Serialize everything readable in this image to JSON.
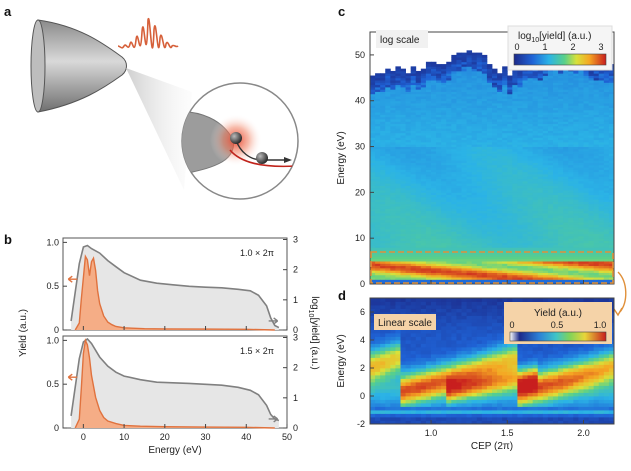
{
  "panel_labels": {
    "a": "a",
    "b": "b",
    "c": "c",
    "d": "d"
  },
  "colors": {
    "orange": "#e0723e",
    "gray_line": "#808080",
    "fill_gray": "#e6e6e6",
    "orange_fill": "#f5ad86"
  },
  "chart_data": [
    {
      "panel": "b-top",
      "type": "area",
      "annotation": "1.0 × 2π",
      "xlabel": "Energy (eV)",
      "ylabel": "Yield (a.u.)",
      "y2label": "log",
      "y2label_sub": "10",
      "y2label_rest": "[yield] (a.u.)",
      "xlim": [
        -5,
        50
      ],
      "ylim": [
        0,
        1.05
      ],
      "y2lim": [
        0,
        3.05
      ],
      "yticks": [
        "0",
        "0.5",
        "1.0"
      ],
      "y2ticks": [
        "0",
        "1",
        "2",
        "3"
      ],
      "series": [
        {
          "name": "yield (linear, orange)",
          "x": [
            -2,
            -1,
            -0.5,
            0,
            0.5,
            1,
            1.5,
            2,
            2.5,
            3,
            3.5,
            4,
            5,
            6,
            7,
            8,
            10,
            12,
            15,
            20,
            30,
            40,
            47
          ],
          "values": [
            0,
            0.08,
            0.35,
            0.6,
            0.84,
            0.8,
            0.62,
            0.78,
            0.82,
            0.68,
            0.45,
            0.3,
            0.16,
            0.09,
            0.06,
            0.04,
            0.025,
            0.02,
            0.015,
            0.012,
            0.01,
            0.008,
            0
          ]
        },
        {
          "name": "log10 yield (gray)",
          "x": [
            -3,
            -1,
            0,
            1,
            2,
            4,
            6,
            8,
            10,
            14,
            18,
            22,
            26,
            30,
            34,
            38,
            41,
            43,
            45,
            46,
            47,
            48
          ],
          "values": [
            0.3,
            2.2,
            2.75,
            2.8,
            2.7,
            2.55,
            2.3,
            2.1,
            1.9,
            1.65,
            1.55,
            1.5,
            1.45,
            1.42,
            1.4,
            1.35,
            1.3,
            1.15,
            0.8,
            0.4,
            0.15,
            0.08
          ]
        }
      ]
    },
    {
      "panel": "b-bottom",
      "type": "area",
      "annotation": "1.5 × 2π",
      "xlabel": "Energy (eV)",
      "xticks": [
        "0",
        "10",
        "20",
        "30",
        "40",
        "50"
      ],
      "xlim": [
        -5,
        50
      ],
      "ylim": [
        0,
        1.05
      ],
      "y2lim": [
        0,
        3.05
      ],
      "yticks": [
        "0",
        "0.5",
        "1.0"
      ],
      "y2ticks": [
        "0",
        "1",
        "2",
        "3"
      ],
      "series": [
        {
          "name": "yield (linear, orange)",
          "x": [
            -2,
            -1,
            -0.5,
            0,
            0.5,
            1,
            1.5,
            2,
            3,
            4,
            5,
            6,
            8,
            10,
            14,
            20,
            30,
            40,
            47
          ],
          "values": [
            0,
            0.1,
            0.45,
            0.85,
            1.0,
            0.95,
            0.8,
            0.6,
            0.35,
            0.2,
            0.12,
            0.08,
            0.05,
            0.03,
            0.02,
            0.015,
            0.01,
            0.008,
            0
          ]
        },
        {
          "name": "log10 yield (gray)",
          "x": [
            -3,
            -1,
            0,
            1,
            2,
            4,
            6,
            8,
            10,
            14,
            18,
            22,
            26,
            30,
            34,
            38,
            41,
            43,
            45,
            46,
            47,
            48
          ],
          "values": [
            0.4,
            2.3,
            2.85,
            2.95,
            2.8,
            2.35,
            2.05,
            1.85,
            1.72,
            1.6,
            1.52,
            1.5,
            1.48,
            1.45,
            1.42,
            1.35,
            1.25,
            1.1,
            0.75,
            0.45,
            0.3,
            0.25
          ]
        }
      ]
    },
    {
      "panel": "c",
      "type": "heatmap",
      "title_badge": "log scale",
      "colorbar_label_pre": "log",
      "colorbar_label_sub": "10",
      "colorbar_label_post": "[yield] (a.u.)",
      "colorbar_ticks": [
        "0",
        "1",
        "2",
        "3"
      ],
      "ylabel": "Energy (eV)",
      "yticks": [
        "0",
        "10",
        "20",
        "30",
        "40",
        "50"
      ],
      "ylim": [
        0,
        55
      ],
      "xlim": [
        0.6,
        2.2
      ],
      "cutoff_energy_vs_cep": {
        "cep": [
          0.6,
          0.9,
          1.1,
          1.25,
          1.4,
          1.5,
          1.7,
          1.9,
          2.2
        ],
        "energy": [
          42,
          43,
          45,
          48,
          44,
          42,
          45,
          47,
          44
        ]
      }
    },
    {
      "panel": "d",
      "type": "heatmap",
      "title_badge": "Linear scale",
      "colorbar_label": "Yield (a.u.)",
      "colorbar_ticks": [
        "0",
        "0.5",
        "1.0"
      ],
      "xlabel": "CEP (2π)",
      "ylabel": "Energy (eV)",
      "xticks": [
        "1.0",
        "1.5",
        "2.0"
      ],
      "yticks": [
        "-2",
        "0",
        "2",
        "4",
        "6"
      ],
      "xlim": [
        0.6,
        2.2
      ],
      "ylim": [
        -2,
        7
      ]
    }
  ]
}
